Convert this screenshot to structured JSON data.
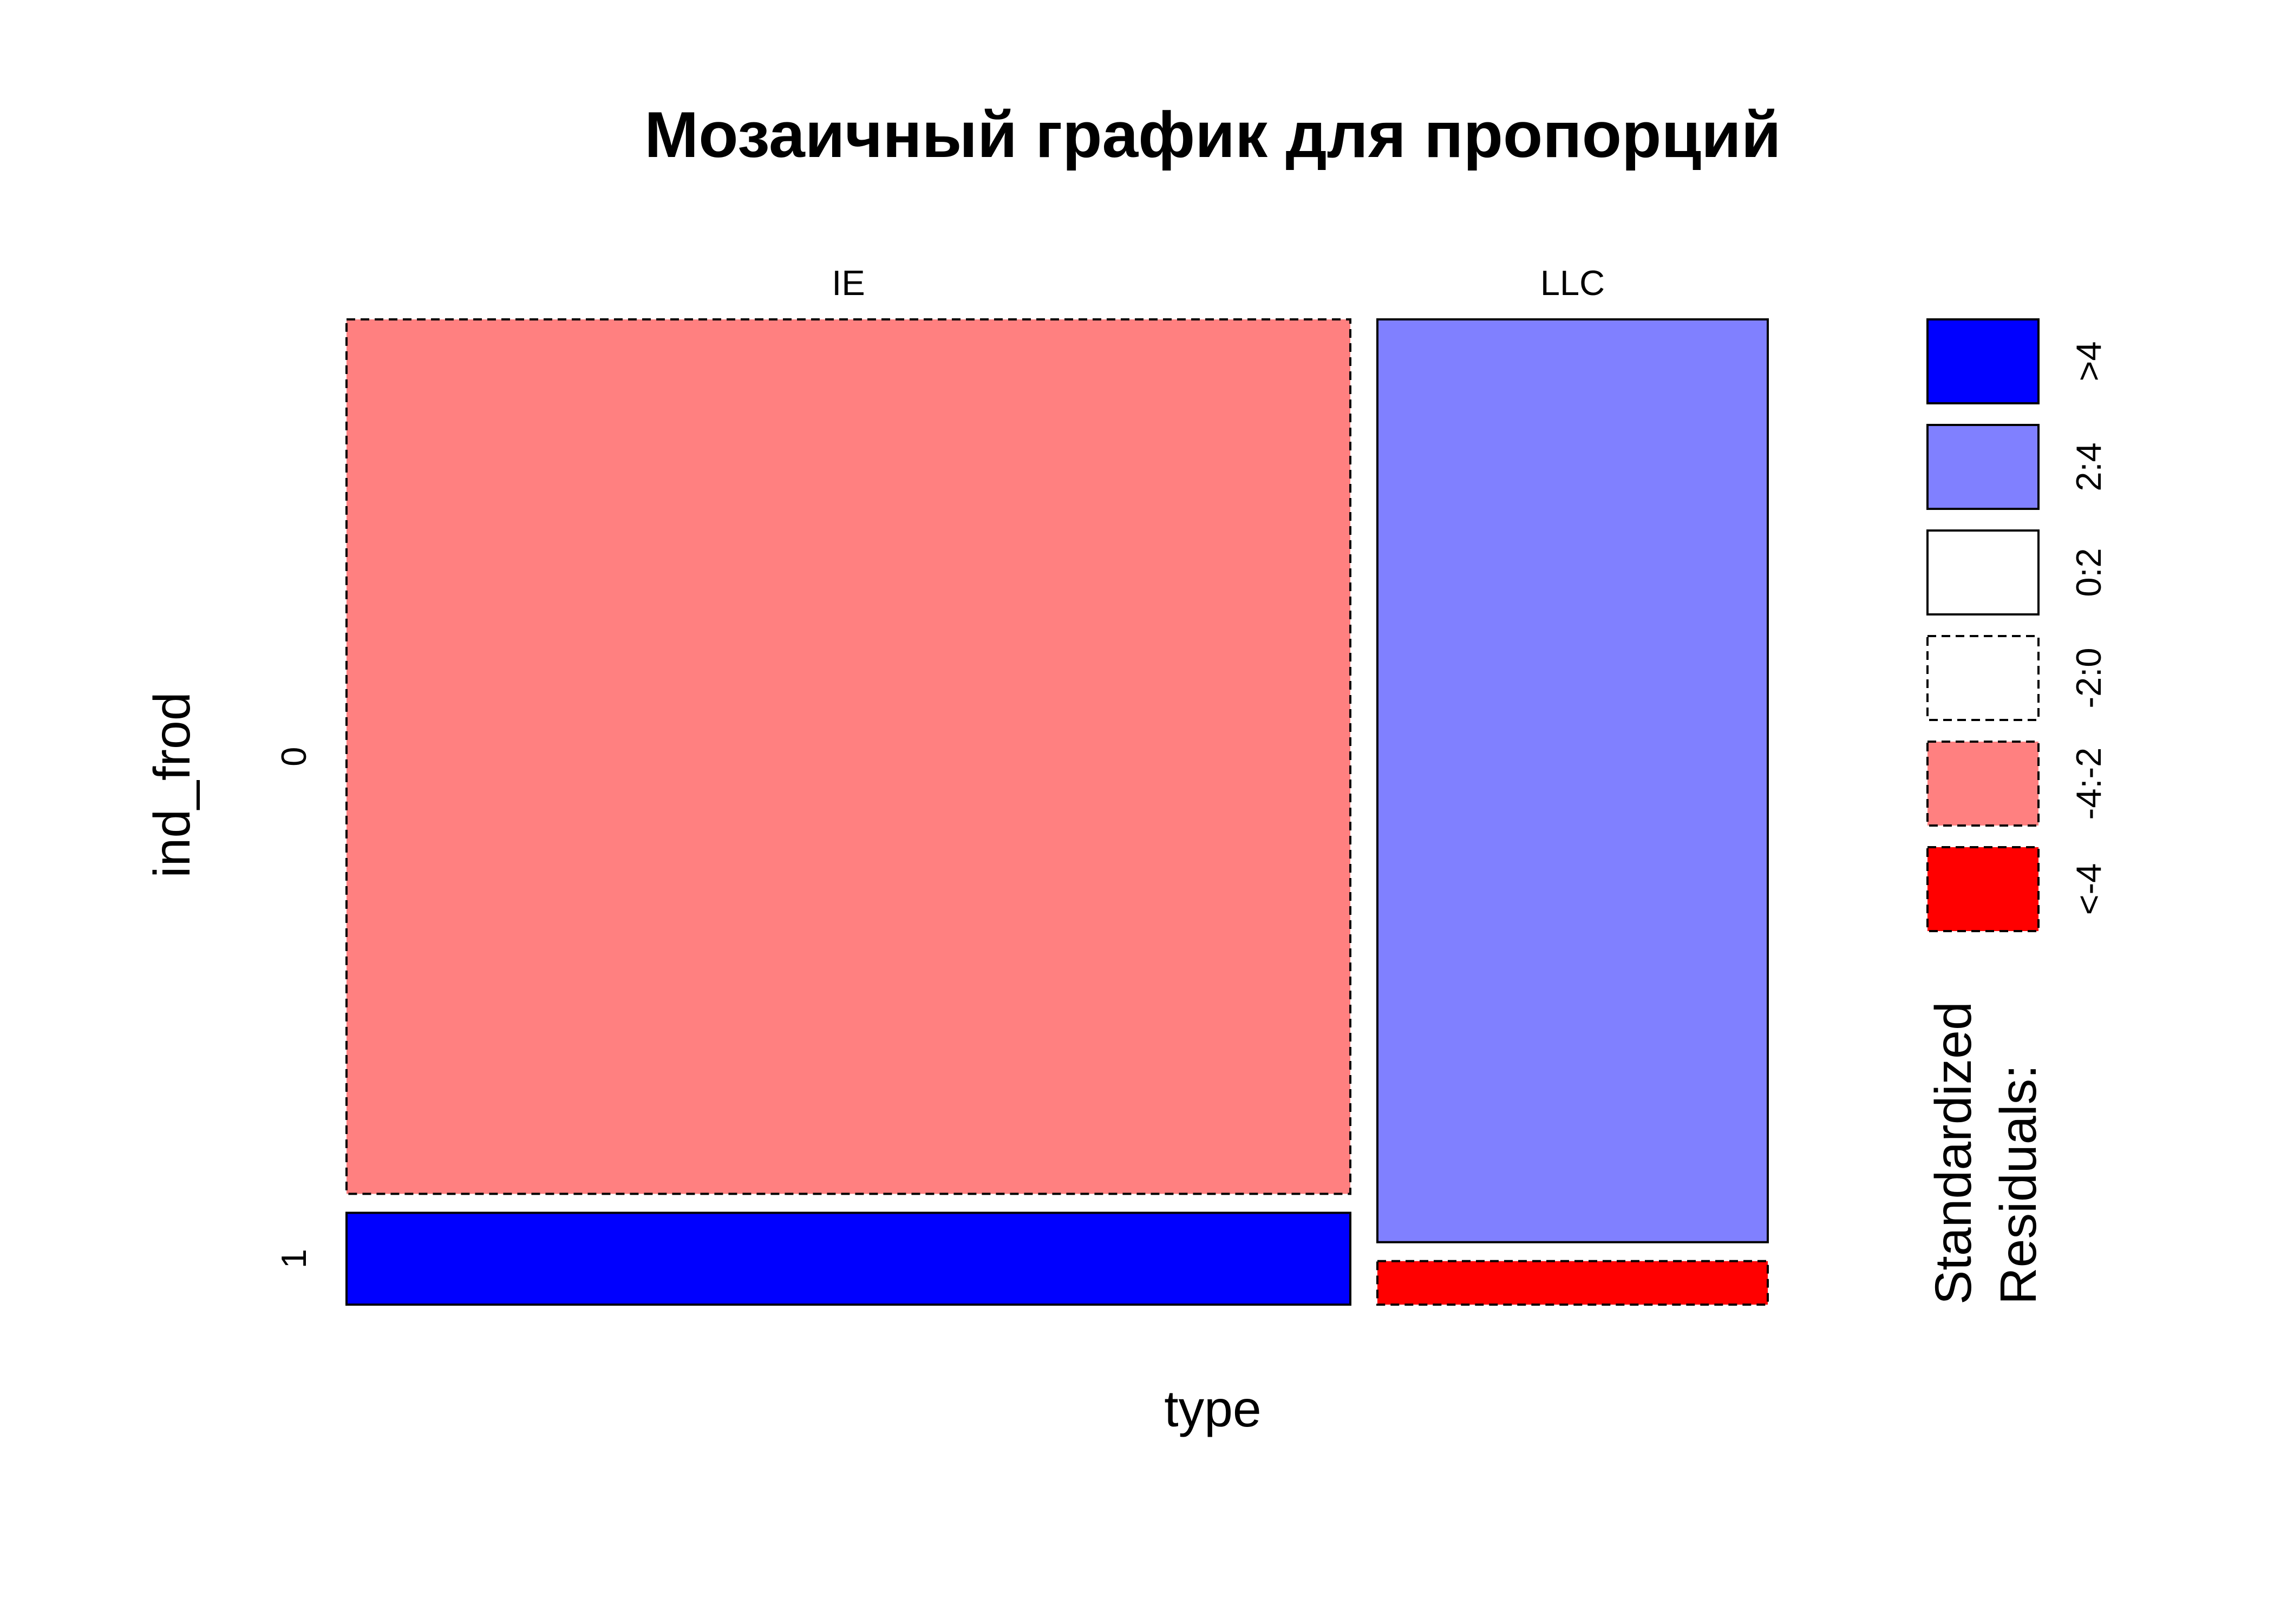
{
  "chart_data": {
    "type": "mosaic",
    "title": "Мозаичный график для пропорций",
    "xlabel": "type",
    "ylabel": "ind_frod",
    "x_categories": [
      "IE",
      "LLC"
    ],
    "y_categories": [
      "0",
      "1"
    ],
    "column_proportions": [
      0.72,
      0.28
    ],
    "cells": [
      {
        "x": "IE",
        "y": "0",
        "proportion_within_column": 0.905,
        "residual_class": "-4:-2",
        "fill": "#FF8080",
        "dashed": true
      },
      {
        "x": "IE",
        "y": "1",
        "proportion_within_column": 0.095,
        "residual_class": ">4",
        "fill": "#0000FF",
        "dashed": false
      },
      {
        "x": "LLC",
        "y": "0",
        "proportion_within_column": 0.955,
        "residual_class": "2:4",
        "fill": "#8080FF",
        "dashed": false
      },
      {
        "x": "LLC",
        "y": "1",
        "proportion_within_column": 0.045,
        "residual_class": "<-4",
        "fill": "#FF0000",
        "dashed": true
      }
    ],
    "legend": {
      "title_lines": [
        "Standardized",
        "Residuals:"
      ],
      "placement": "right",
      "entries": [
        {
          "label": ">4",
          "fill": "#0000FF",
          "dashed": false
        },
        {
          "label": "2:4",
          "fill": "#8080FF",
          "dashed": false
        },
        {
          "label": "0:2",
          "fill": "#FFFFFF",
          "dashed": false
        },
        {
          "label": "-2:0",
          "fill": "#FFFFFF",
          "dashed": true
        },
        {
          "label": "-4:-2",
          "fill": "#FF8080",
          "dashed": true
        },
        {
          "label": "<-4",
          "fill": "#FF0000",
          "dashed": true
        }
      ]
    }
  }
}
